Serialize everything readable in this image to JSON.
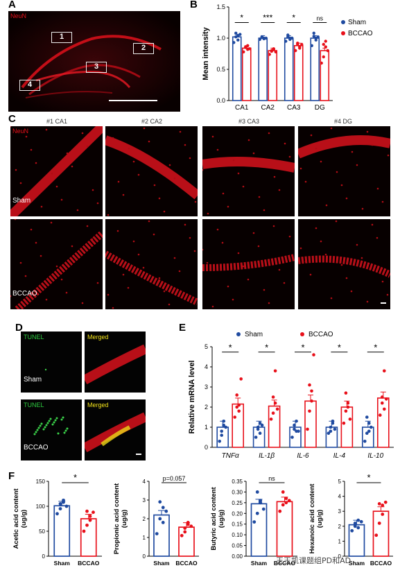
{
  "panels": {
    "A": "A",
    "B": "B",
    "C": "C",
    "D": "D",
    "E": "E",
    "F": "F"
  },
  "panel_a": {
    "stain": "NeuN",
    "boxes": [
      "1",
      "2",
      "3",
      "4"
    ]
  },
  "panel_c": {
    "stain": "NeuN",
    "columns": [
      "#1 CA1",
      "#2 CA2",
      "#3 CA3",
      "#4 DG"
    ],
    "rows": [
      "Sham",
      "BCCAO"
    ]
  },
  "panel_d": {
    "tunel": "TUNEL",
    "merged": "Merged",
    "rows": [
      "Sham",
      "BCCAO"
    ]
  },
  "watermark": "王玉凯课题组PD和AD",
  "colors": {
    "sham": "#1f4aa0",
    "bccao": "#e8101a"
  },
  "chart_data": [
    {
      "id": "B",
      "type": "bar",
      "ylabel": "Mean intensity",
      "categories": [
        "CA1",
        "CA2",
        "CA3",
        "DG"
      ],
      "ylim": [
        0,
        1.5
      ],
      "yticks": [
        "0.0",
        "0.5",
        "1.0",
        "1.5"
      ],
      "series": [
        {
          "name": "Sham",
          "values": [
            1.02,
            1.0,
            1.0,
            1.0
          ],
          "points": [
            [
              0.93,
              1.08,
              1.04,
              1.02,
              0.97,
              1.06
            ],
            [
              0.98,
              1.02,
              1.0,
              1.01,
              0.99,
              1.0
            ],
            [
              0.95,
              1.05,
              1.0,
              1.02,
              0.98,
              1.0
            ],
            [
              0.88,
              1.08,
              1.0,
              1.03,
              0.97,
              1.02
            ]
          ]
        },
        {
          "name": "BCCAO",
          "values": [
            0.84,
            0.8,
            0.88,
            0.8
          ],
          "points": [
            [
              0.78,
              0.86,
              0.82,
              0.85,
              0.88,
              0.83
            ],
            [
              0.74,
              0.8,
              0.82,
              0.79,
              0.83,
              0.78
            ],
            [
              0.8,
              0.92,
              0.86,
              0.9,
              0.84,
              0.9
            ],
            [
              0.6,
              0.7,
              0.86,
              0.9,
              0.95,
              0.8
            ]
          ]
        }
      ],
      "significance": [
        "*",
        "***",
        "*",
        "ns"
      ],
      "legend": "right"
    },
    {
      "id": "E",
      "type": "bar",
      "ylabel": "Relative mRNA level",
      "categories": [
        "TNFα",
        "IL-1β",
        "IL-6",
        "IL-4",
        "IL-10"
      ],
      "ylim": [
        0,
        5
      ],
      "yticks": [
        "0",
        "1",
        "2",
        "3",
        "4",
        "5"
      ],
      "series": [
        {
          "name": "Sham",
          "values": [
            1.0,
            1.0,
            1.0,
            1.0,
            1.0
          ],
          "points": [
            [
              0.3,
              0.8,
              1.1,
              0.6,
              1.3,
              1.0
            ],
            [
              0.5,
              1.0,
              1.2,
              0.9,
              0.7,
              1.1
            ],
            [
              0.5,
              0.9,
              1.3,
              1.1,
              0.8,
              0.8
            ],
            [
              0.7,
              1.0,
              1.2,
              0.8,
              1.3,
              0.9
            ],
            [
              0.3,
              0.7,
              1.2,
              1.5,
              0.8,
              1.0
            ]
          ]
        },
        {
          "name": "BCCAO",
          "values": [
            2.15,
            2.05,
            2.3,
            2.0,
            2.45
          ],
          "points": [
            [
              1.5,
              2.0,
              1.8,
              2.6,
              2.1,
              3.4
            ],
            [
              1.4,
              2.5,
              3.8,
              1.7,
              2.2,
              1.9
            ],
            [
              0.9,
              1.8,
              2.8,
              3.1,
              2.3,
              4.6
            ],
            [
              1.2,
              1.8,
              2.2,
              2.7,
              2.0,
              1.4
            ],
            [
              1.6,
              2.5,
              3.8,
              2.2,
              1.9,
              2.4
            ]
          ]
        }
      ],
      "significance": [
        "*",
        "*",
        "*",
        "*",
        "*"
      ],
      "legend": "top"
    },
    {
      "id": "F1",
      "type": "bar",
      "ylabel": "Acetic acid content\n(ug/g)",
      "categories": [
        "Sham",
        "BCCAO"
      ],
      "ylim": [
        0,
        150
      ],
      "yticks": [
        "0",
        "50",
        "100",
        "150"
      ],
      "values": [
        101,
        75
      ],
      "points": [
        [
          85,
          105,
          112,
          95,
          108,
          100
        ],
        [
          50,
          62,
          80,
          90,
          72,
          88
        ]
      ],
      "significance": "*"
    },
    {
      "id": "F2",
      "type": "bar",
      "ylabel": "Propionic acid content\n(ug/g)",
      "categories": [
        "Sham",
        "BCCAO"
      ],
      "ylim": [
        0,
        4
      ],
      "yticks": [
        "0",
        "1",
        "2",
        "3",
        "4"
      ],
      "values": [
        2.2,
        1.55
      ],
      "points": [
        [
          1.2,
          2.0,
          2.6,
          2.9,
          1.8,
          2.4
        ],
        [
          1.1,
          1.5,
          1.8,
          1.3,
          1.7,
          1.6
        ]
      ],
      "significance": "p=0.057"
    },
    {
      "id": "F3",
      "type": "bar",
      "ylabel": "Butyric acid content\n(ug/g)",
      "categories": [
        "Sham",
        "BCCAO"
      ],
      "ylim": [
        0,
        0.35
      ],
      "yticks": [
        "0.00",
        "0.05",
        "0.10",
        "0.15",
        "0.20",
        "0.25",
        "0.30",
        "0.35"
      ],
      "values": [
        0.245,
        0.255
      ],
      "points": [
        [
          0.16,
          0.2,
          0.25,
          0.3,
          0.26,
          0.22
        ],
        [
          0.21,
          0.24,
          0.27,
          0.3,
          0.25,
          0.26
        ]
      ],
      "significance": "ns"
    },
    {
      "id": "F4",
      "type": "bar",
      "ylabel": "Hexanoic acid content\n(ug/g)",
      "categories": [
        "Sham",
        "BCCAO"
      ],
      "ylim": [
        0,
        5
      ],
      "yticks": [
        "0",
        "1",
        "2",
        "3",
        "4",
        "5"
      ],
      "values": [
        2.1,
        3.0
      ],
      "points": [
        [
          1.7,
          2.0,
          2.4,
          2.2,
          1.9,
          2.3
        ],
        [
          1.4,
          2.2,
          3.4,
          3.5,
          2.8,
          3.6
        ]
      ],
      "significance": "*"
    }
  ]
}
